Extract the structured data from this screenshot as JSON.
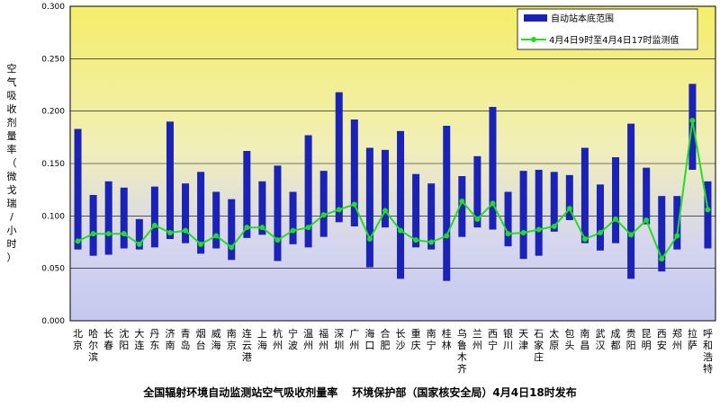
{
  "chart_data": {
    "type": "bar",
    "title": "全国辐射环境自动监测站空气吸收剂量率　 环境保护部（国家核安全局）4月4日18时发布",
    "ylabel": "空气吸收剂量率（微戈瑞/小时）",
    "ylim": [
      0,
      0.3
    ],
    "yticks": [
      "0.000",
      "0.050",
      "0.100",
      "0.150",
      "0.200",
      "0.250",
      "0.300"
    ],
    "grid": true,
    "legend_position": "top-right",
    "categories": [
      "北京",
      "哈尔滨",
      "长春",
      "沈阳",
      "大连",
      "丹东",
      "济南",
      "青岛",
      "烟台",
      "威海",
      "南京",
      "连云港",
      "上海",
      "杭州",
      "宁波",
      "温州",
      "福州",
      "深圳",
      "广州",
      "海口",
      "合肥",
      "长沙",
      "重庆",
      "南宁",
      "桂林",
      "乌鲁木齐",
      "兰州",
      "西宁",
      "银川",
      "天津",
      "石家庄",
      "太原",
      "包头",
      "南昌",
      "武汉",
      "成都",
      "贵阳",
      "昆明",
      "西安",
      "郑州",
      "拉萨",
      "呼和浩特"
    ],
    "series": [
      {
        "name": "自动站本底范围",
        "kind": "range-bar",
        "color": "#1a22b8",
        "low": [
          0.068,
          0.062,
          0.063,
          0.069,
          0.068,
          0.07,
          0.078,
          0.074,
          0.064,
          0.069,
          0.058,
          0.079,
          0.082,
          0.057,
          0.073,
          0.07,
          0.08,
          0.094,
          0.09,
          0.051,
          0.089,
          0.04,
          0.07,
          0.068,
          0.038,
          0.08,
          0.089,
          0.087,
          0.071,
          0.059,
          0.062,
          0.085,
          0.096,
          0.074,
          0.067,
          0.074,
          0.04,
          0.092,
          0.047,
          0.068,
          0.144,
          0.069
        ],
        "high": [
          0.183,
          0.12,
          0.133,
          0.127,
          0.097,
          0.128,
          0.19,
          0.131,
          0.142,
          0.123,
          0.116,
          0.162,
          0.133,
          0.148,
          0.123,
          0.177,
          0.143,
          0.218,
          0.192,
          0.165,
          0.163,
          0.181,
          0.14,
          0.131,
          0.186,
          0.138,
          0.157,
          0.204,
          0.123,
          0.143,
          0.144,
          0.142,
          0.139,
          0.165,
          0.13,
          0.156,
          0.188,
          0.146,
          0.119,
          0.119,
          0.226,
          0.133
        ]
      },
      {
        "name": "4月4日9时至4月4日17时监测值",
        "kind": "line",
        "color": "#22dd22",
        "values": [
          0.076,
          0.083,
          0.083,
          0.083,
          0.073,
          0.091,
          0.084,
          0.086,
          0.073,
          0.081,
          0.07,
          0.089,
          0.089,
          0.077,
          0.086,
          0.089,
          0.101,
          0.106,
          0.111,
          0.078,
          0.105,
          0.086,
          0.077,
          0.075,
          0.081,
          0.114,
          0.097,
          0.112,
          0.083,
          0.084,
          0.087,
          0.09,
          0.107,
          0.078,
          0.084,
          0.097,
          0.082,
          0.096,
          0.059,
          0.081,
          0.191,
          0.106
        ]
      }
    ]
  }
}
